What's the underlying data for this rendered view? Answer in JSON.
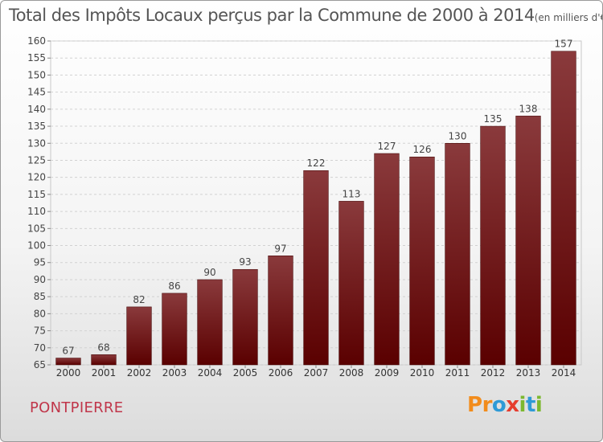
{
  "title": "Total des Impôts Locaux perçus par la Commune de 2000 à 2014",
  "title_unit": "(en milliers d'€)",
  "commune": "PONTPIERRE",
  "logo": {
    "letters": [
      "P",
      "r",
      "o",
      "x",
      "i",
      "t",
      "i"
    ],
    "colors": [
      "#f28c1c",
      "#f28c1c",
      "#2e9ad6",
      "#e63c2e",
      "#7cb82f",
      "#2e9ad6",
      "#7cb82f"
    ]
  },
  "colors": {
    "bar_top": "#8a3a3c",
    "bar_bottom": "#5a0000",
    "commune_text": "#c0364a"
  },
  "chart_data": {
    "type": "bar",
    "categories": [
      "2000",
      "2001",
      "2002",
      "2003",
      "2004",
      "2005",
      "2006",
      "2007",
      "2008",
      "2009",
      "2010",
      "2011",
      "2012",
      "2013",
      "2014"
    ],
    "values": [
      67,
      68,
      82,
      86,
      90,
      93,
      97,
      122,
      113,
      127,
      126,
      130,
      135,
      138,
      157
    ],
    "ylim": [
      65,
      160
    ],
    "yticks": [
      65,
      70,
      75,
      80,
      85,
      90,
      95,
      100,
      105,
      110,
      115,
      120,
      125,
      130,
      135,
      140,
      145,
      150,
      155,
      160
    ],
    "grid": true,
    "legend": "none",
    "data_labels": true
  }
}
